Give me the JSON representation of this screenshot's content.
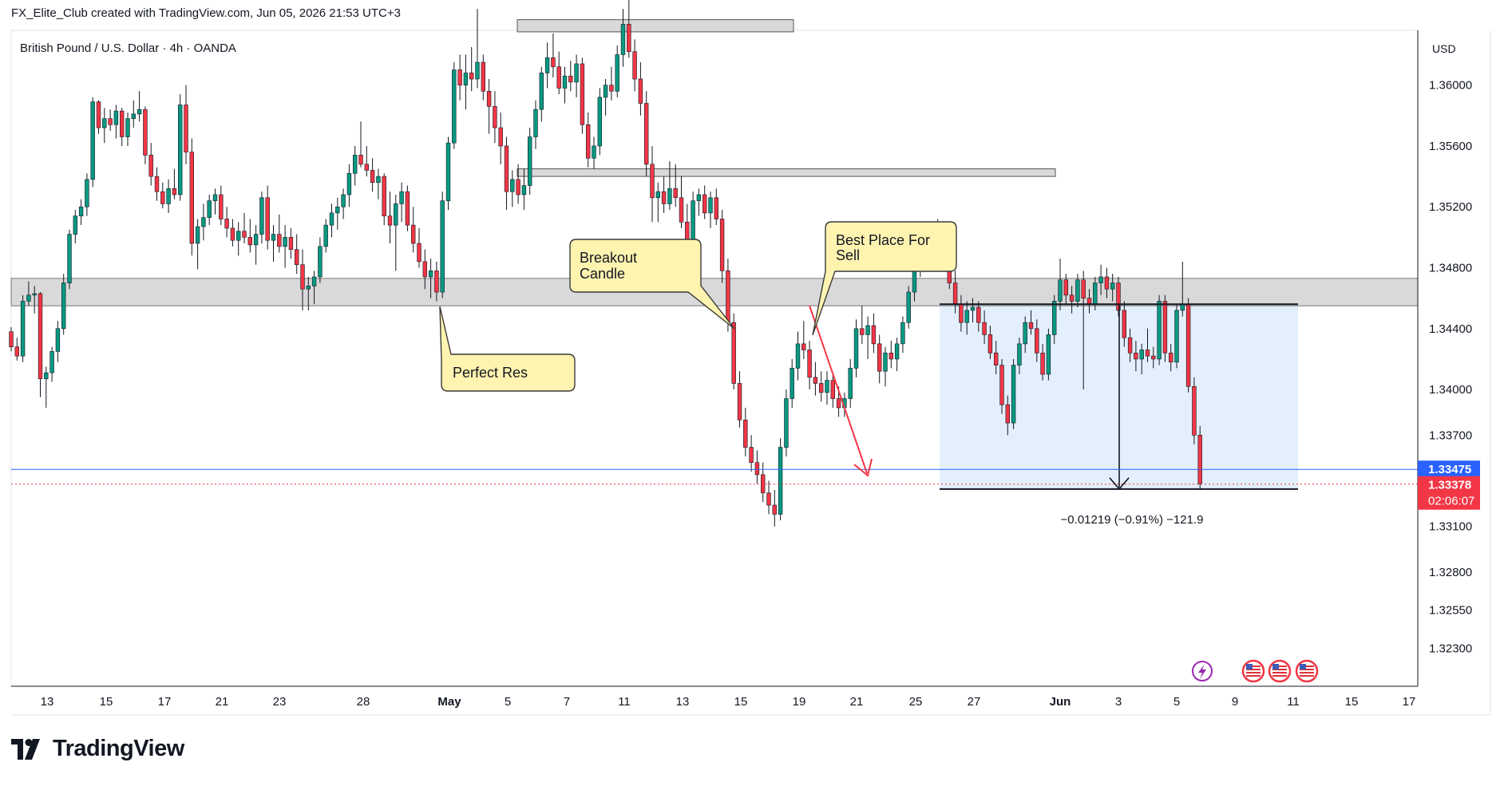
{
  "header": {
    "caption": "FX_Elite_Club created with TradingView.com, Jun 05, 2026 21:53 UTC+3"
  },
  "symbol": {
    "title": "British Pound / U.S. Dollar · 4h · OANDA"
  },
  "currency": "USD",
  "brand": {
    "name": "TradingView"
  },
  "annotations": {
    "breakout": [
      "Breakout",
      "Candle"
    ],
    "best_place": [
      "Best Place For",
      "Sell"
    ],
    "perfect_res": "Perfect Res",
    "measure": "−0.01219 (−0.91%) −121.9"
  },
  "price_labels": {
    "blue": "1.33475",
    "red": "1.33378",
    "countdown": "02:06:07"
  },
  "colors": {
    "up": "#089981",
    "down": "#f23645",
    "zone": "#d9d9d9",
    "measure_box": "#e3effc",
    "callout": "#fff3b0",
    "price_line": "#2962ff",
    "arrow": "#f23645"
  },
  "icons": [
    "lightning-icon",
    "us-flag-icon",
    "us-flag-icon",
    "us-flag-icon"
  ],
  "chart_data": {
    "type": "candlestick",
    "title": "British Pound / U.S. Dollar · 4h · OANDA",
    "y_unit": "USD",
    "ylim": [
      1.3205,
      1.3636
    ],
    "y_ticks": [
      "1.36000",
      "1.35600",
      "1.35200",
      "1.34800",
      "1.34400",
      "1.34000",
      "1.33700",
      "1.33100",
      "1.32800",
      "1.32550",
      "1.32300"
    ],
    "y_tick_values": [
      1.36,
      1.356,
      1.352,
      1.348,
      1.344,
      1.34,
      1.337,
      1.331,
      1.328,
      1.3255,
      1.323
    ],
    "x_ticks": [
      "13",
      "15",
      "17",
      "21",
      "23",
      "28",
      "May",
      "5",
      "7",
      "11",
      "13",
      "15",
      "19",
      "21",
      "25",
      "27",
      "Jun",
      "3",
      "5",
      "9",
      "11",
      "15",
      "17"
    ],
    "resistance_zone": [
      1.3455,
      1.3473
    ],
    "upper_zones": [
      [
        1.3635,
        1.3643
      ],
      [
        1.354,
        1.3545
      ]
    ],
    "measure": {
      "from": 1.3456,
      "to": 1.33346,
      "change": -0.01219,
      "percent": -0.91,
      "pips": -121.9
    },
    "last_price": 1.33378,
    "reference_price": 1.33475,
    "grid": false,
    "candles": [
      [
        1.3438,
        1.3441,
        1.3425,
        1.3428
      ],
      [
        1.3428,
        1.3434,
        1.3419,
        1.3422
      ],
      [
        1.3422,
        1.3462,
        1.3418,
        1.3458
      ],
      [
        1.3458,
        1.3471,
        1.3455,
        1.3462
      ],
      [
        1.3462,
        1.3468,
        1.345,
        1.3463
      ],
      [
        1.3463,
        1.3464,
        1.3395,
        1.3407
      ],
      [
        1.3407,
        1.3415,
        1.3388,
        1.3411
      ],
      [
        1.3411,
        1.3428,
        1.3405,
        1.3425
      ],
      [
        1.3425,
        1.3445,
        1.3418,
        1.344
      ],
      [
        1.344,
        1.3476,
        1.3436,
        1.347
      ],
      [
        1.347,
        1.3505,
        1.3466,
        1.3502
      ],
      [
        1.3502,
        1.3518,
        1.3496,
        1.3514
      ],
      [
        1.3514,
        1.3525,
        1.3508,
        1.352
      ],
      [
        1.352,
        1.3542,
        1.3514,
        1.3538
      ],
      [
        1.3538,
        1.3592,
        1.3533,
        1.3589
      ],
      [
        1.3589,
        1.359,
        1.3568,
        1.3572
      ],
      [
        1.3572,
        1.3585,
        1.3562,
        1.3578
      ],
      [
        1.3578,
        1.3584,
        1.357,
        1.3574
      ],
      [
        1.3574,
        1.3587,
        1.3565,
        1.3583
      ],
      [
        1.3583,
        1.3585,
        1.356,
        1.3566
      ],
      [
        1.3566,
        1.3582,
        1.356,
        1.3578
      ],
      [
        1.3578,
        1.359,
        1.3572,
        1.3581
      ],
      [
        1.3581,
        1.3596,
        1.3576,
        1.3584
      ],
      [
        1.3584,
        1.3586,
        1.3548,
        1.3554
      ],
      [
        1.3554,
        1.3562,
        1.3534,
        1.354
      ],
      [
        1.354,
        1.3546,
        1.3524,
        1.353
      ],
      [
        1.353,
        1.3536,
        1.3519,
        1.3522
      ],
      [
        1.3522,
        1.3538,
        1.3516,
        1.3532
      ],
      [
        1.3532,
        1.3545,
        1.3525,
        1.3528
      ],
      [
        1.3528,
        1.3594,
        1.3524,
        1.3587
      ],
      [
        1.3587,
        1.36,
        1.3548,
        1.3556
      ],
      [
        1.3556,
        1.3565,
        1.3488,
        1.3496
      ],
      [
        1.3496,
        1.3512,
        1.3479,
        1.3507
      ],
      [
        1.3507,
        1.3522,
        1.3498,
        1.3513
      ],
      [
        1.3513,
        1.3528,
        1.3508,
        1.3524
      ],
      [
        1.3524,
        1.3532,
        1.3515,
        1.3528
      ],
      [
        1.3528,
        1.3534,
        1.3508,
        1.3512
      ],
      [
        1.3512,
        1.352,
        1.35,
        1.3506
      ],
      [
        1.3506,
        1.3512,
        1.3494,
        1.3498
      ],
      [
        1.3498,
        1.351,
        1.3488,
        1.3504
      ],
      [
        1.3504,
        1.3516,
        1.3496,
        1.35
      ],
      [
        1.35,
        1.3512,
        1.349,
        1.3495
      ],
      [
        1.3495,
        1.3508,
        1.3482,
        1.3502
      ],
      [
        1.3502,
        1.353,
        1.3496,
        1.3526
      ],
      [
        1.3526,
        1.3534,
        1.3492,
        1.3498
      ],
      [
        1.3498,
        1.3508,
        1.3484,
        1.3502
      ],
      [
        1.3502,
        1.3515,
        1.349,
        1.3494
      ],
      [
        1.3494,
        1.3508,
        1.348,
        1.35
      ],
      [
        1.35,
        1.3506,
        1.3486,
        1.3492
      ],
      [
        1.3492,
        1.3502,
        1.3476,
        1.3482
      ],
      [
        1.3482,
        1.3492,
        1.3452,
        1.3466
      ],
      [
        1.3466,
        1.3474,
        1.3452,
        1.3468
      ],
      [
        1.3468,
        1.3478,
        1.3456,
        1.3474
      ],
      [
        1.3474,
        1.35,
        1.347,
        1.3494
      ],
      [
        1.3494,
        1.3512,
        1.349,
        1.3508
      ],
      [
        1.3508,
        1.3522,
        1.35,
        1.3516
      ],
      [
        1.3516,
        1.3526,
        1.3505,
        1.352
      ],
      [
        1.352,
        1.3532,
        1.3512,
        1.3528
      ],
      [
        1.3528,
        1.3548,
        1.352,
        1.3542
      ],
      [
        1.3542,
        1.356,
        1.3534,
        1.3554
      ],
      [
        1.3554,
        1.3576,
        1.3546,
        1.3548
      ],
      [
        1.3548,
        1.356,
        1.354,
        1.3544
      ],
      [
        1.3544,
        1.3552,
        1.353,
        1.3536
      ],
      [
        1.3536,
        1.3545,
        1.3525,
        1.354
      ],
      [
        1.354,
        1.3542,
        1.3508,
        1.3514
      ],
      [
        1.3514,
        1.353,
        1.3496,
        1.3508
      ],
      [
        1.3508,
        1.3528,
        1.3478,
        1.3522
      ],
      [
        1.3522,
        1.3536,
        1.351,
        1.353
      ],
      [
        1.353,
        1.3534,
        1.3504,
        1.3508
      ],
      [
        1.3508,
        1.352,
        1.349,
        1.3496
      ],
      [
        1.3496,
        1.3506,
        1.348,
        1.3484
      ],
      [
        1.3484,
        1.3492,
        1.3466,
        1.3474
      ],
      [
        1.3474,
        1.3486,
        1.346,
        1.3478
      ],
      [
        1.3478,
        1.3484,
        1.3458,
        1.3464
      ],
      [
        1.3464,
        1.353,
        1.346,
        1.3524
      ],
      [
        1.3524,
        1.3566,
        1.3518,
        1.3562
      ],
      [
        1.3562,
        1.3615,
        1.3558,
        1.361
      ],
      [
        1.361,
        1.362,
        1.359,
        1.36
      ],
      [
        1.36,
        1.362,
        1.3584,
        1.3608
      ],
      [
        1.3608,
        1.3625,
        1.3596,
        1.3604
      ],
      [
        1.3604,
        1.365,
        1.3598,
        1.3615
      ],
      [
        1.3615,
        1.362,
        1.359,
        1.3596
      ],
      [
        1.3596,
        1.3604,
        1.3568,
        1.3586
      ],
      [
        1.3586,
        1.3596,
        1.3562,
        1.3572
      ],
      [
        1.3572,
        1.3582,
        1.3548,
        1.356
      ],
      [
        1.356,
        1.3566,
        1.3518,
        1.353
      ],
      [
        1.353,
        1.3544,
        1.352,
        1.3538
      ],
      [
        1.3538,
        1.3548,
        1.3522,
        1.3528
      ],
      [
        1.3528,
        1.3545,
        1.3518,
        1.3534
      ],
      [
        1.3534,
        1.3572,
        1.3528,
        1.3566
      ],
      [
        1.3566,
        1.359,
        1.3558,
        1.3584
      ],
      [
        1.3584,
        1.3612,
        1.3576,
        1.3608
      ],
      [
        1.3608,
        1.3628,
        1.3598,
        1.3618
      ],
      [
        1.3618,
        1.3634,
        1.3605,
        1.3612
      ],
      [
        1.3612,
        1.3622,
        1.3594,
        1.3598
      ],
      [
        1.3598,
        1.3612,
        1.3588,
        1.3606
      ],
      [
        1.3606,
        1.3616,
        1.3596,
        1.3602
      ],
      [
        1.3602,
        1.362,
        1.3592,
        1.3614
      ],
      [
        1.3614,
        1.3618,
        1.3568,
        1.3574
      ],
      [
        1.3574,
        1.3582,
        1.3546,
        1.3552
      ],
      [
        1.3552,
        1.3566,
        1.3545,
        1.356
      ],
      [
        1.356,
        1.3598,
        1.3554,
        1.3592
      ],
      [
        1.3592,
        1.3604,
        1.358,
        1.36
      ],
      [
        1.36,
        1.3612,
        1.359,
        1.3596
      ],
      [
        1.3596,
        1.3626,
        1.3592,
        1.362
      ],
      [
        1.362,
        1.365,
        1.3612,
        1.364
      ],
      [
        1.364,
        1.3658,
        1.3618,
        1.3622
      ],
      [
        1.3622,
        1.363,
        1.3596,
        1.3604
      ],
      [
        1.3604,
        1.3615,
        1.358,
        1.3588
      ],
      [
        1.3588,
        1.3596,
        1.354,
        1.3548
      ],
      [
        1.3548,
        1.356,
        1.351,
        1.3526
      ],
      [
        1.3526,
        1.3536,
        1.351,
        1.353
      ],
      [
        1.353,
        1.354,
        1.3516,
        1.3522
      ],
      [
        1.3522,
        1.355,
        1.3518,
        1.3532
      ],
      [
        1.3532,
        1.3548,
        1.352,
        1.3526
      ],
      [
        1.3526,
        1.354,
        1.3506,
        1.351
      ],
      [
        1.351,
        1.3522,
        1.349,
        1.3498
      ],
      [
        1.3498,
        1.353,
        1.3494,
        1.3524
      ],
      [
        1.3524,
        1.3532,
        1.3514,
        1.3528
      ],
      [
        1.3528,
        1.3534,
        1.3512,
        1.3516
      ],
      [
        1.3516,
        1.353,
        1.3506,
        1.3526
      ],
      [
        1.3526,
        1.3532,
        1.3508,
        1.3512
      ],
      [
        1.3512,
        1.3518,
        1.347,
        1.3478
      ],
      [
        1.3478,
        1.3486,
        1.3438,
        1.3444
      ],
      [
        1.3444,
        1.345,
        1.34,
        1.3404
      ],
      [
        1.3404,
        1.3412,
        1.3375,
        1.338
      ],
      [
        1.338,
        1.3388,
        1.3356,
        1.3362
      ],
      [
        1.3362,
        1.337,
        1.3346,
        1.3352
      ],
      [
        1.3352,
        1.336,
        1.3338,
        1.3344
      ],
      [
        1.3344,
        1.3352,
        1.3326,
        1.3332
      ],
      [
        1.3332,
        1.334,
        1.3318,
        1.3324
      ],
      [
        1.3324,
        1.3334,
        1.331,
        1.3318
      ],
      [
        1.3318,
        1.3368,
        1.3314,
        1.3362
      ],
      [
        1.3362,
        1.34,
        1.3356,
        1.3394
      ],
      [
        1.3394,
        1.342,
        1.3388,
        1.3414
      ],
      [
        1.3414,
        1.3438,
        1.3406,
        1.343
      ],
      [
        1.343,
        1.3445,
        1.342,
        1.3426
      ],
      [
        1.3426,
        1.3432,
        1.34,
        1.3408
      ],
      [
        1.3408,
        1.3418,
        1.3396,
        1.3404
      ],
      [
        1.3404,
        1.3412,
        1.3392,
        1.3398
      ],
      [
        1.3398,
        1.3412,
        1.339,
        1.3406
      ],
      [
        1.3406,
        1.341,
        1.3388,
        1.3394
      ],
      [
        1.3394,
        1.3402,
        1.3382,
        1.3388
      ],
      [
        1.3388,
        1.3398,
        1.3382,
        1.3394
      ],
      [
        1.3394,
        1.342,
        1.3388,
        1.3414
      ],
      [
        1.3414,
        1.3446,
        1.3408,
        1.344
      ],
      [
        1.344,
        1.3455,
        1.343,
        1.3436
      ],
      [
        1.3436,
        1.3448,
        1.342,
        1.3442
      ],
      [
        1.3442,
        1.345,
        1.3424,
        1.343
      ],
      [
        1.343,
        1.3436,
        1.3404,
        1.3412
      ],
      [
        1.3412,
        1.3428,
        1.3402,
        1.3424
      ],
      [
        1.3424,
        1.3432,
        1.3414,
        1.342
      ],
      [
        1.342,
        1.3434,
        1.3412,
        1.343
      ],
      [
        1.343,
        1.3448,
        1.3424,
        1.3444
      ],
      [
        1.3444,
        1.3468,
        1.344,
        1.3464
      ],
      [
        1.3464,
        1.3484,
        1.3458,
        1.348
      ],
      [
        1.348,
        1.3498,
        1.3474,
        1.3494
      ],
      [
        1.3494,
        1.3506,
        1.3486,
        1.3498
      ],
      [
        1.3498,
        1.351,
        1.3488,
        1.3502
      ],
      [
        1.3502,
        1.3512,
        1.3492,
        1.3496
      ],
      [
        1.3496,
        1.35,
        1.3478,
        1.3484
      ],
      [
        1.3484,
        1.349,
        1.3466,
        1.347
      ],
      [
        1.347,
        1.3478,
        1.345,
        1.3456
      ],
      [
        1.3456,
        1.3462,
        1.3438,
        1.3444
      ],
      [
        1.3444,
        1.3458,
        1.3436,
        1.3452
      ],
      [
        1.3452,
        1.346,
        1.3444,
        1.3454
      ],
      [
        1.3454,
        1.3458,
        1.3438,
        1.3444
      ],
      [
        1.3444,
        1.3452,
        1.343,
        1.3436
      ],
      [
        1.3436,
        1.3442,
        1.342,
        1.3424
      ],
      [
        1.3424,
        1.3432,
        1.341,
        1.3416
      ],
      [
        1.3416,
        1.342,
        1.3384,
        1.339
      ],
      [
        1.339,
        1.3396,
        1.337,
        1.3378
      ],
      [
        1.3378,
        1.342,
        1.3374,
        1.3416
      ],
      [
        1.3416,
        1.3434,
        1.341,
        1.343
      ],
      [
        1.343,
        1.3448,
        1.3424,
        1.3444
      ],
      [
        1.3444,
        1.3452,
        1.3436,
        1.344
      ],
      [
        1.344,
        1.3446,
        1.3418,
        1.3424
      ],
      [
        1.3424,
        1.343,
        1.3406,
        1.341
      ],
      [
        1.341,
        1.344,
        1.3406,
        1.3436
      ],
      [
        1.3436,
        1.3462,
        1.343,
        1.3458
      ],
      [
        1.3458,
        1.3486,
        1.3452,
        1.3472
      ],
      [
        1.3472,
        1.3476,
        1.3456,
        1.3462
      ],
      [
        1.3462,
        1.3468,
        1.345,
        1.3458
      ],
      [
        1.3458,
        1.3476,
        1.3454,
        1.3472
      ],
      [
        1.3472,
        1.3478,
        1.34,
        1.346
      ],
      [
        1.346,
        1.3466,
        1.345,
        1.3456
      ],
      [
        1.3456,
        1.3474,
        1.3452,
        1.347
      ],
      [
        1.347,
        1.3482,
        1.3462,
        1.3474
      ],
      [
        1.3474,
        1.348,
        1.346,
        1.3466
      ],
      [
        1.3466,
        1.3476,
        1.3458,
        1.347
      ],
      [
        1.347,
        1.3474,
        1.3448,
        1.3452
      ],
      [
        1.3452,
        1.3458,
        1.3428,
        1.3434
      ],
      [
        1.3434,
        1.344,
        1.3418,
        1.3424
      ],
      [
        1.3424,
        1.3432,
        1.3412,
        1.342
      ],
      [
        1.342,
        1.343,
        1.341,
        1.3426
      ],
      [
        1.3426,
        1.344,
        1.3418,
        1.3422
      ],
      [
        1.3422,
        1.3428,
        1.3414,
        1.342
      ],
      [
        1.342,
        1.3462,
        1.3416,
        1.3458
      ],
      [
        1.3458,
        1.3462,
        1.3418,
        1.3424
      ],
      [
        1.3424,
        1.343,
        1.3412,
        1.3418
      ],
      [
        1.3418,
        1.3456,
        1.3414,
        1.3452
      ],
      [
        1.3452,
        1.3484,
        1.3448,
        1.3456
      ],
      [
        1.3456,
        1.346,
        1.3398,
        1.3402
      ],
      [
        1.3402,
        1.3408,
        1.3364,
        1.337
      ],
      [
        1.337,
        1.3376,
        1.3334,
        1.3338
      ]
    ]
  }
}
